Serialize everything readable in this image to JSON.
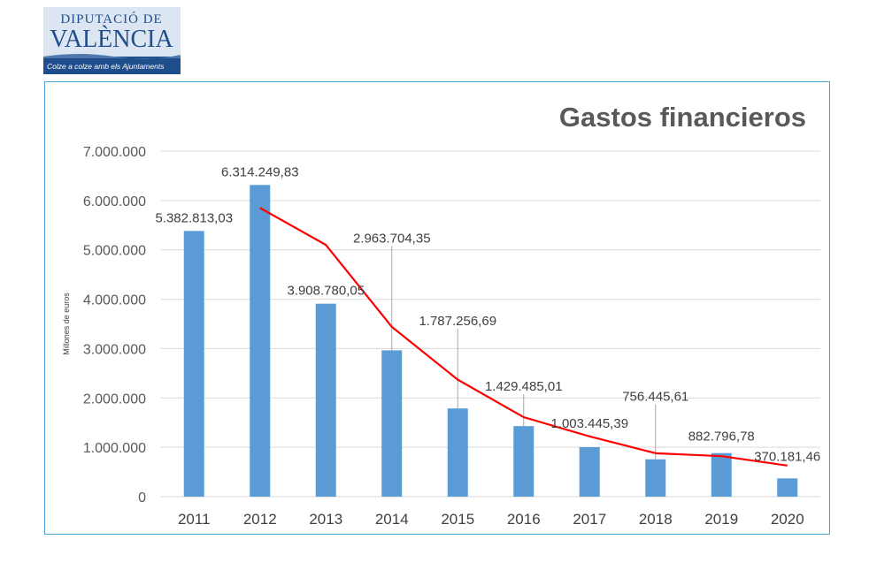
{
  "logo": {
    "line1": "DIPUTACIÓ DE",
    "line2": "VALÈNCIA",
    "tagline": "Colze a colze amb els Ajuntaments",
    "color": "#1f4e8c"
  },
  "chart_data": {
    "type": "bar",
    "title": "Gastos financieros",
    "xlabel": "",
    "ylabel": "Millones de euros",
    "ylim": [
      0,
      7000000
    ],
    "yticks": [
      0,
      1000000,
      2000000,
      3000000,
      4000000,
      5000000,
      6000000,
      7000000
    ],
    "ytick_labels": [
      "0",
      "1.000.000",
      "2.000.000",
      "3.000.000",
      "4.000.000",
      "5.000.000",
      "6.000.000",
      "7.000.000"
    ],
    "grid": true,
    "categories": [
      "2011",
      "2012",
      "2013",
      "2014",
      "2015",
      "2016",
      "2017",
      "2018",
      "2019",
      "2020"
    ],
    "series": [
      {
        "type": "bar",
        "color": "#5b9bd5",
        "values": [
          5382813.03,
          6314249.83,
          3908780.05,
          2963704.35,
          1787256.69,
          1429485.01,
          1003445.39,
          756445.61,
          882796.78,
          370181.46
        ],
        "labels": [
          "5.382.813,03",
          "6.314.249,83",
          "3.908.780,05",
          "2.963.704,35",
          "1.787.256,69",
          "1.429.485,01",
          "1.003.445,39",
          "756.445,61",
          "882.796,78",
          "370.181,46"
        ]
      },
      {
        "type": "line",
        "color": "#ff0000",
        "x": [
          "2012",
          "2013",
          "2014",
          "2015",
          "2016",
          "2017",
          "2018",
          "2019",
          "2020"
        ],
        "values": [
          5850000,
          5100000,
          3440000,
          2370000,
          1610000,
          1220000,
          880000,
          820000,
          630000
        ]
      }
    ]
  }
}
